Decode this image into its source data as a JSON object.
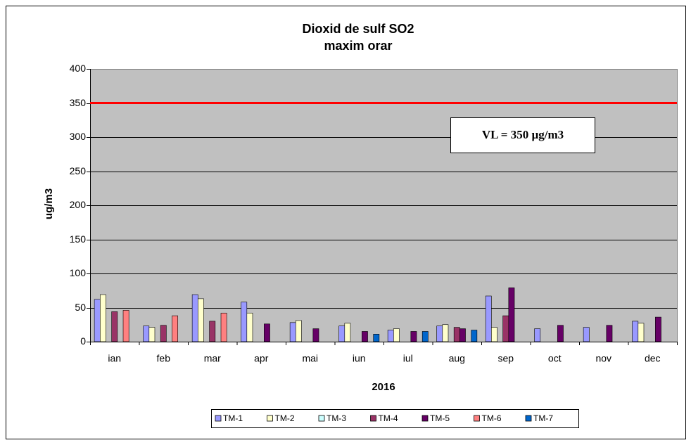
{
  "chart_data": {
    "type": "bar",
    "title": "Dioxid de sulf  SO2",
    "subtitle": "maxim orar",
    "xlabel": "2016",
    "ylabel": "ug/m3",
    "categories": [
      "ian",
      "feb",
      "mar",
      "apr",
      "mai",
      "iun",
      "iul",
      "aug",
      "sep",
      "oct",
      "nov",
      "dec"
    ],
    "series": [
      {
        "name": "TM-1",
        "color": "#9999ff",
        "values": [
          62,
          23,
          69,
          58,
          28,
          23,
          17,
          23,
          67,
          19,
          21,
          30
        ]
      },
      {
        "name": "TM-2",
        "color": "#ffffcc",
        "values": [
          69,
          21,
          63,
          42,
          31,
          27,
          19,
          25,
          21,
          null,
          null,
          27
        ]
      },
      {
        "name": "TM-3",
        "color": "#ccffff",
        "values": [
          null,
          null,
          null,
          null,
          null,
          null,
          null,
          null,
          null,
          null,
          null,
          null
        ]
      },
      {
        "name": "TM-4",
        "color": "#993366",
        "values": [
          44,
          24,
          30,
          null,
          null,
          null,
          null,
          21,
          38,
          null,
          null,
          null
        ]
      },
      {
        "name": "TM-5",
        "color": "#660066",
        "values": [
          null,
          null,
          null,
          26,
          19,
          15,
          15,
          19,
          79,
          24,
          24,
          36
        ]
      },
      {
        "name": "TM-6",
        "color": "#ff8080",
        "values": [
          46,
          38,
          42,
          null,
          null,
          null,
          null,
          null,
          null,
          null,
          null,
          null
        ]
      },
      {
        "name": "TM-7",
        "color": "#0066cc",
        "values": [
          null,
          null,
          null,
          null,
          null,
          11,
          15,
          17,
          null,
          null,
          null,
          null
        ]
      }
    ],
    "ylim": [
      0,
      400
    ],
    "yticks": [
      0,
      50,
      100,
      150,
      200,
      250,
      300,
      350,
      400
    ],
    "grid": true,
    "reference_line": {
      "value": 350,
      "color": "#ff0000"
    },
    "annotation": "VL = 350 µg/m3",
    "legend": "bottom"
  }
}
